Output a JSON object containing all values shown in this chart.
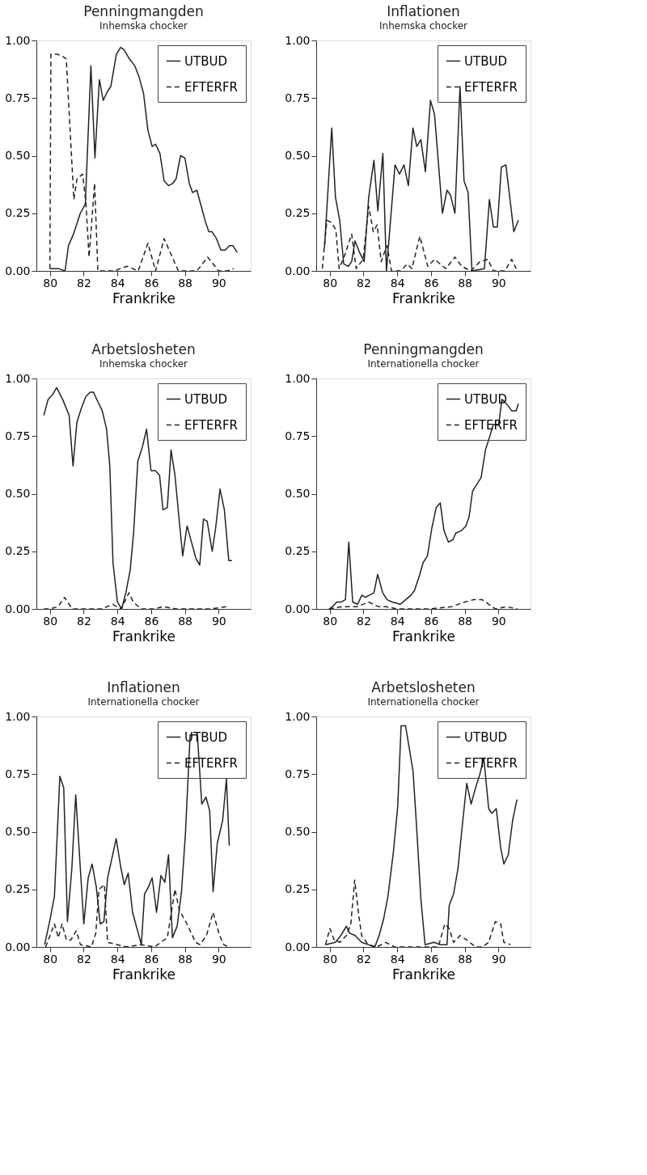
{
  "chart_data": [
    {
      "type": "line",
      "title": "Penningmangden",
      "subtitle": "Inhemska chocker",
      "xlabel": "Frankrike",
      "xlim": [
        79.2,
        91.9
      ],
      "xticks": [
        80,
        82,
        84,
        86,
        88,
        90
      ],
      "ylim": [
        0,
        1
      ],
      "yticks": [
        {
          "value": 0,
          "label": "0.00"
        },
        {
          "value": 0.25,
          "label": "0.25"
        },
        {
          "value": 0.5,
          "label": "0.50"
        },
        {
          "value": 0.75,
          "label": "0.75"
        },
        {
          "value": 1,
          "label": "1.00"
        }
      ],
      "legend": "top right",
      "grid": false,
      "series": [
        {
          "name": "UTBUD",
          "color": "#222222",
          "line_style": "solid",
          "x": [
            80.0,
            80.5,
            80.9,
            81.1,
            81.4,
            81.8,
            82.1,
            82.43,
            82.67,
            82.93,
            83.16,
            83.42,
            83.61,
            83.94,
            84.19,
            84.39,
            84.71,
            85.03,
            85.29,
            85.55,
            85.81,
            86.06,
            86.26,
            86.52,
            86.77,
            87.03,
            87.29,
            87.48,
            87.74,
            88.0,
            88.26,
            88.45,
            88.71,
            88.97,
            89.23,
            89.42,
            89.61,
            89.87,
            90.13,
            90.39,
            90.65,
            90.84,
            91.1
          ],
          "values": [
            0.01,
            0.01,
            0.0,
            0.11,
            0.16,
            0.25,
            0.29,
            0.89,
            0.49,
            0.83,
            0.74,
            0.78,
            0.8,
            0.94,
            0.97,
            0.96,
            0.92,
            0.89,
            0.84,
            0.77,
            0.61,
            0.54,
            0.55,
            0.51,
            0.39,
            0.37,
            0.38,
            0.4,
            0.5,
            0.49,
            0.38,
            0.34,
            0.35,
            0.28,
            0.21,
            0.17,
            0.17,
            0.14,
            0.09,
            0.09,
            0.11,
            0.11,
            0.08
          ]
        },
        {
          "name": "EFTERFR",
          "color": "#222222",
          "line_style": "dashed",
          "x": [
            80.0,
            80.06,
            80.45,
            80.77,
            80.97,
            81.42,
            81.61,
            81.94,
            82.13,
            82.32,
            82.65,
            82.84,
            83.16,
            83.81,
            84.58,
            85.23,
            85.81,
            86.26,
            86.77,
            87.61,
            88.71,
            89.35,
            90.0,
            90.52,
            90.9
          ],
          "values": [
            0.01,
            0.94,
            0.94,
            0.93,
            0.92,
            0.31,
            0.4,
            0.42,
            0.3,
            0.06,
            0.38,
            0.0,
            0.0,
            0.0,
            0.02,
            0.0,
            0.12,
            0.0,
            0.14,
            0.0,
            0.0,
            0.06,
            0.0,
            0.0,
            0.01
          ]
        }
      ]
    },
    {
      "type": "line",
      "title": "Inflationen",
      "subtitle": "Inhemska chocker",
      "xlabel": "Frankrike",
      "xlim": [
        79.2,
        91.9
      ],
      "xticks": [
        80,
        82,
        84,
        86,
        88,
        90
      ],
      "ylim": [
        0,
        1
      ],
      "yticks": [
        {
          "value": 0,
          "label": "0.00"
        },
        {
          "value": 0.25,
          "label": "0.25"
        },
        {
          "value": 0.5,
          "label": "0.50"
        },
        {
          "value": 0.75,
          "label": "0.75"
        },
        {
          "value": 1,
          "label": "1.00"
        }
      ],
      "legend": "top right",
      "grid": false,
      "series": [
        {
          "name": "UTBUD",
          "color": "#222222",
          "line_style": "solid",
          "x": [
            79.69,
            80.12,
            80.34,
            80.59,
            80.83,
            81.1,
            81.3,
            81.5,
            81.77,
            82.04,
            82.31,
            82.62,
            82.85,
            83.15,
            83.36,
            83.87,
            84.13,
            84.4,
            84.66,
            84.93,
            85.16,
            85.4,
            85.67,
            85.97,
            86.21,
            86.68,
            86.95,
            87.15,
            87.42,
            87.72,
            87.96,
            88.2,
            88.43,
            89.17,
            89.46,
            89.7,
            89.93,
            90.17,
            90.44,
            90.91,
            91.18
          ],
          "values": [
            0.1,
            0.62,
            0.32,
            0.22,
            0.03,
            0.02,
            0.04,
            0.13,
            0.08,
            0.04,
            0.32,
            0.48,
            0.26,
            0.51,
            0.0,
            0.46,
            0.42,
            0.46,
            0.37,
            0.62,
            0.54,
            0.57,
            0.43,
            0.74,
            0.68,
            0.25,
            0.35,
            0.33,
            0.25,
            0.8,
            0.39,
            0.34,
            0.0,
            0.01,
            0.31,
            0.19,
            0.19,
            0.45,
            0.46,
            0.17,
            0.22
          ]
        },
        {
          "name": "EFTERFR",
          "color": "#222222",
          "line_style": "dashed",
          "x": [
            79.56,
            79.83,
            80.09,
            80.36,
            80.56,
            80.9,
            81.3,
            81.57,
            81.98,
            82.31,
            82.58,
            82.81,
            83.05,
            83.39,
            83.66,
            84.19,
            84.6,
            84.87,
            85.34,
            85.81,
            86.21,
            86.88,
            87.42,
            87.82,
            88.36,
            88.9,
            89.37,
            89.7,
            90.38,
            90.78,
            91.05
          ],
          "values": [
            0.01,
            0.22,
            0.21,
            0.18,
            0.01,
            0.07,
            0.16,
            0.01,
            0.05,
            0.28,
            0.17,
            0.2,
            0.04,
            0.11,
            0.0,
            0.0,
            0.03,
            0.01,
            0.15,
            0.02,
            0.05,
            0.01,
            0.06,
            0.02,
            0.0,
            0.04,
            0.05,
            0.0,
            0.0,
            0.05,
            0.01
          ]
        }
      ]
    },
    {
      "type": "line",
      "title": "Arbetslosheten",
      "subtitle": "Inhemska chocker",
      "xlabel": "Frankrike",
      "xlim": [
        79.2,
        91.9
      ],
      "xticks": [
        80,
        82,
        84,
        86,
        88,
        90
      ],
      "ylim": [
        0,
        1
      ],
      "yticks": [
        {
          "value": 0,
          "label": "0.00"
        },
        {
          "value": 0.25,
          "label": "0.25"
        },
        {
          "value": 0.5,
          "label": "0.50"
        },
        {
          "value": 0.75,
          "label": "0.75"
        },
        {
          "value": 1,
          "label": "1.00"
        }
      ],
      "legend": "top right",
      "grid": false,
      "series": [
        {
          "name": "UTBUD",
          "color": "#222222",
          "line_style": "solid",
          "x": [
            79.64,
            79.9,
            80.16,
            80.4,
            80.75,
            81.14,
            81.37,
            81.6,
            81.86,
            82.12,
            82.38,
            82.58,
            82.84,
            83.1,
            83.36,
            83.55,
            83.74,
            84.0,
            84.25,
            84.5,
            84.76,
            84.96,
            85.21,
            85.47,
            85.73,
            85.99,
            86.25,
            86.5,
            86.7,
            86.96,
            87.18,
            87.41,
            87.67,
            87.87,
            88.13,
            88.39,
            88.65,
            88.88,
            89.1,
            89.32,
            89.62,
            89.82,
            90.08,
            90.34,
            90.6,
            90.79
          ],
          "values": [
            0.84,
            0.91,
            0.93,
            0.96,
            0.91,
            0.84,
            0.62,
            0.81,
            0.87,
            0.92,
            0.94,
            0.94,
            0.9,
            0.86,
            0.78,
            0.62,
            0.2,
            0.03,
            0.0,
            0.07,
            0.17,
            0.33,
            0.64,
            0.7,
            0.78,
            0.6,
            0.6,
            0.58,
            0.43,
            0.44,
            0.69,
            0.58,
            0.38,
            0.23,
            0.36,
            0.29,
            0.22,
            0.19,
            0.39,
            0.38,
            0.25,
            0.35,
            0.52,
            0.43,
            0.21,
            0.21
          ]
        },
        {
          "name": "EFTERFR",
          "color": "#222222",
          "line_style": "dashed",
          "x": [
            79.64,
            79.96,
            80.48,
            80.87,
            81.32,
            82.04,
            83.07,
            83.72,
            84.23,
            84.68,
            84.94,
            85.39,
            86.17,
            86.7,
            87.48,
            88.52,
            89.55,
            90.45
          ],
          "values": [
            0.0,
            0.0,
            0.01,
            0.05,
            0.0,
            0.0,
            0.0,
            0.02,
            0.0,
            0.07,
            0.03,
            0.0,
            0.0,
            0.01,
            0.0,
            0.0,
            0.0,
            0.01
          ]
        }
      ]
    },
    {
      "type": "line",
      "title": "Penningmangden",
      "subtitle": "Internationella chocker",
      "xlabel": "Frankrike",
      "xlim": [
        79.2,
        91.9
      ],
      "xticks": [
        80,
        82,
        84,
        86,
        88,
        90
      ],
      "ylim": [
        0,
        1
      ],
      "yticks": [
        {
          "value": 0,
          "label": "0.00"
        },
        {
          "value": 0.25,
          "label": "0.25"
        },
        {
          "value": 0.5,
          "label": "0.50"
        },
        {
          "value": 0.75,
          "label": "0.75"
        },
        {
          "value": 1,
          "label": "1.00"
        }
      ],
      "legend": "top right",
      "grid": false,
      "series": [
        {
          "name": "UTBUD",
          "color": "#222222",
          "line_style": "solid",
          "x": [
            79.96,
            80.16,
            80.42,
            80.67,
            80.93,
            81.13,
            81.36,
            81.65,
            81.91,
            82.1,
            82.36,
            82.62,
            82.84,
            83.14,
            83.4,
            83.72,
            84.18,
            84.5,
            84.82,
            85.02,
            85.34,
            85.53,
            85.79,
            86.05,
            86.31,
            86.55,
            86.77,
            87.03,
            87.29,
            87.48,
            87.81,
            88.07,
            88.26,
            88.46,
            88.71,
            88.97,
            89.23,
            89.49,
            89.69,
            90.01,
            90.21,
            90.47,
            90.79,
            91.05,
            91.18
          ],
          "values": [
            0.0,
            0.01,
            0.03,
            0.03,
            0.04,
            0.29,
            0.03,
            0.02,
            0.06,
            0.05,
            0.06,
            0.07,
            0.15,
            0.07,
            0.04,
            0.03,
            0.02,
            0.04,
            0.06,
            0.08,
            0.15,
            0.2,
            0.23,
            0.35,
            0.44,
            0.46,
            0.34,
            0.29,
            0.3,
            0.33,
            0.34,
            0.36,
            0.4,
            0.51,
            0.54,
            0.57,
            0.69,
            0.75,
            0.8,
            0.8,
            0.91,
            0.89,
            0.86,
            0.86,
            0.89
          ]
        },
        {
          "name": "EFTERFR",
          "color": "#222222",
          "line_style": "dashed",
          "x": [
            79.96,
            80.74,
            81.65,
            82.3,
            82.88,
            83.33,
            83.98,
            85.92,
            87.22,
            88.0,
            88.52,
            89.04,
            89.43,
            89.82,
            90.47,
            91.12
          ],
          "values": [
            0.0,
            0.01,
            0.01,
            0.03,
            0.01,
            0.01,
            0.0,
            0.0,
            0.01,
            0.03,
            0.04,
            0.04,
            0.02,
            0.0,
            0.01,
            0.0
          ]
        }
      ]
    },
    {
      "type": "line",
      "title": "Inflationen",
      "subtitle": "Internationella chocker",
      "xlabel": "Frankrike",
      "xlim": [
        79.2,
        91.9
      ],
      "xticks": [
        80,
        82,
        84,
        86,
        88,
        90
      ],
      "ylim": [
        0,
        1
      ],
      "yticks": [
        {
          "value": 0,
          "label": "0.00"
        },
        {
          "value": 0.25,
          "label": "0.25"
        },
        {
          "value": 0.5,
          "label": "0.50"
        },
        {
          "value": 0.75,
          "label": "0.75"
        },
        {
          "value": 1,
          "label": "1.00"
        }
      ],
      "legend": "top right",
      "grid": false,
      "series": [
        {
          "name": "UTBUD",
          "color": "#222222",
          "line_style": "solid",
          "x": [
            79.69,
            80.01,
            80.27,
            80.59,
            80.82,
            81.04,
            81.3,
            81.53,
            82.01,
            82.27,
            82.5,
            82.75,
            82.98,
            83.2,
            83.42,
            83.93,
            84.19,
            84.41,
            84.64,
            84.9,
            85.42,
            85.61,
            85.84,
            86.06,
            86.32,
            86.58,
            86.81,
            87.03,
            87.26,
            87.54,
            87.8,
            88.03,
            88.31,
            88.51,
            88.74,
            89.0,
            89.25,
            89.47,
            89.67,
            89.92,
            90.24,
            90.46,
            90.63
          ],
          "values": [
            0.01,
            0.12,
            0.22,
            0.74,
            0.69,
            0.11,
            0.34,
            0.66,
            0.1,
            0.3,
            0.36,
            0.26,
            0.1,
            0.11,
            0.3,
            0.47,
            0.35,
            0.27,
            0.32,
            0.15,
            0.01,
            0.23,
            0.26,
            0.3,
            0.15,
            0.31,
            0.28,
            0.4,
            0.04,
            0.09,
            0.24,
            0.49,
            0.92,
            0.92,
            0.92,
            0.62,
            0.65,
            0.59,
            0.24,
            0.45,
            0.55,
            0.73,
            0.44
          ]
        },
        {
          "name": "EFTERFR",
          "color": "#222222",
          "line_style": "dashed",
          "x": [
            79.75,
            80.01,
            80.27,
            80.5,
            80.72,
            80.98,
            81.24,
            81.56,
            81.81,
            82.46,
            82.72,
            82.91,
            83.23,
            83.42,
            84.0,
            84.52,
            85.42,
            86.19,
            86.96,
            87.41,
            87.67,
            88.12,
            88.63,
            88.89,
            89.28,
            89.67,
            90.05,
            90.31,
            90.57
          ],
          "values": [
            0.0,
            0.05,
            0.1,
            0.04,
            0.1,
            0.03,
            0.03,
            0.07,
            0.01,
            0.0,
            0.06,
            0.25,
            0.27,
            0.02,
            0.01,
            0.0,
            0.01,
            0.0,
            0.04,
            0.25,
            0.16,
            0.1,
            0.02,
            0.01,
            0.05,
            0.15,
            0.05,
            0.01,
            0.0
          ]
        }
      ]
    },
    {
      "type": "line",
      "title": "Arbetslosheten",
      "subtitle": "Internationella chocker",
      "xlabel": "Frankrike",
      "xlim": [
        79.2,
        91.9
      ],
      "xticks": [
        80,
        82,
        84,
        86,
        88,
        90
      ],
      "ylim": [
        0,
        1
      ],
      "yticks": [
        {
          "value": 0,
          "label": "0.00"
        },
        {
          "value": 0.25,
          "label": "0.25"
        },
        {
          "value": 0.5,
          "label": "0.50"
        },
        {
          "value": 0.75,
          "label": "0.75"
        },
        {
          "value": 1,
          "label": "1.00"
        }
      ],
      "legend": "top right",
      "grid": false,
      "series": [
        {
          "name": "UTBUD",
          "color": "#222222",
          "line_style": "solid",
          "x": [
            79.75,
            80.34,
            80.66,
            80.99,
            81.18,
            81.5,
            81.89,
            82.28,
            82.67,
            82.93,
            83.19,
            83.45,
            83.77,
            84.03,
            84.23,
            84.49,
            84.72,
            84.94,
            85.14,
            85.4,
            85.65,
            86.17,
            86.56,
            86.95,
            87.08,
            87.34,
            87.6,
            87.86,
            88.12,
            88.38,
            88.64,
            88.9,
            89.13,
            89.42,
            89.61,
            89.87,
            90.13,
            90.32,
            90.58,
            90.84,
            91.1
          ],
          "values": [
            0.01,
            0.02,
            0.05,
            0.09,
            0.06,
            0.05,
            0.02,
            0.01,
            0.0,
            0.05,
            0.12,
            0.22,
            0.41,
            0.61,
            0.96,
            0.96,
            0.86,
            0.76,
            0.53,
            0.21,
            0.01,
            0.02,
            0.01,
            0.01,
            0.18,
            0.23,
            0.34,
            0.53,
            0.71,
            0.62,
            0.69,
            0.75,
            0.82,
            0.6,
            0.58,
            0.6,
            0.43,
            0.36,
            0.4,
            0.55,
            0.64
          ]
        },
        {
          "name": "EFTERFR",
          "color": "#222222",
          "line_style": "dashed",
          "x": [
            79.75,
            80.01,
            80.27,
            80.6,
            80.99,
            81.25,
            81.48,
            81.7,
            81.89,
            82.28,
            82.8,
            83.32,
            83.84,
            84.62,
            85.65,
            86.43,
            86.82,
            87.08,
            87.34,
            87.73,
            88.12,
            88.64,
            89.03,
            89.42,
            89.81,
            90.13,
            90.32,
            90.71
          ],
          "values": [
            0.01,
            0.08,
            0.03,
            0.02,
            0.05,
            0.1,
            0.29,
            0.15,
            0.05,
            0.01,
            0.0,
            0.02,
            0.0,
            0.0,
            0.0,
            0.0,
            0.1,
            0.08,
            0.02,
            0.05,
            0.03,
            0.0,
            0.0,
            0.02,
            0.11,
            0.1,
            0.02,
            0.01
          ]
        }
      ]
    }
  ]
}
